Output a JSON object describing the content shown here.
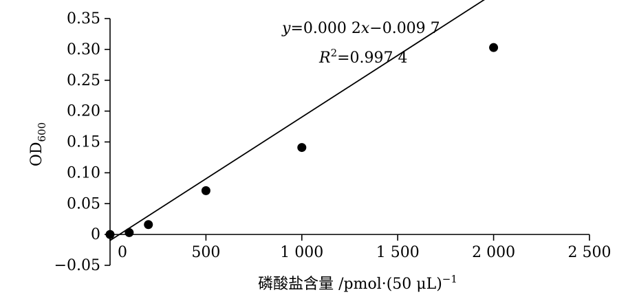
{
  "chart_data": {
    "type": "scatter",
    "xlabel": "磷酸盐含量 /pmol·(50 μL)",
    "xlabel_superscript": "−1",
    "ylabel_main": "OD",
    "ylabel_sub": "600",
    "xlim": [
      0,
      2500
    ],
    "ylim": [
      -0.05,
      0.35
    ],
    "x_ticks": [
      0,
      500,
      1000,
      1500,
      2000,
      2500
    ],
    "x_tick_labels": [
      "0",
      "500",
      "1 000",
      "1 500",
      "2 000",
      "2 500"
    ],
    "y_ticks": [
      -0.05,
      0,
      0.05,
      0.1,
      0.15,
      0.2,
      0.25,
      0.3,
      0.35
    ],
    "y_tick_labels": [
      "−0.05",
      "0",
      "0.05",
      "0.10",
      "0.15",
      "0.20",
      "0.25",
      "0.30",
      "0.35"
    ],
    "x_tick_extra_label": "0",
    "points": [
      {
        "x": 0,
        "y": 0.0
      },
      {
        "x": 100,
        "y": 0.003
      },
      {
        "x": 200,
        "y": 0.016
      },
      {
        "x": 500,
        "y": 0.071
      },
      {
        "x": 1000,
        "y": 0.141
      },
      {
        "x": 2000,
        "y": 0.303
      }
    ],
    "fit_line": {
      "slope": 0.0002,
      "intercept": -0.0097,
      "x_range": [
        0,
        2000
      ]
    },
    "equation": {
      "y_var": "y",
      "eq_text": "=0.000 2",
      "x_var": "x",
      "const_text": "−0.009 7",
      "r_var": "R",
      "r_sup": "2",
      "r_text": "=0.997 4"
    },
    "grid": false,
    "legend": "none"
  }
}
